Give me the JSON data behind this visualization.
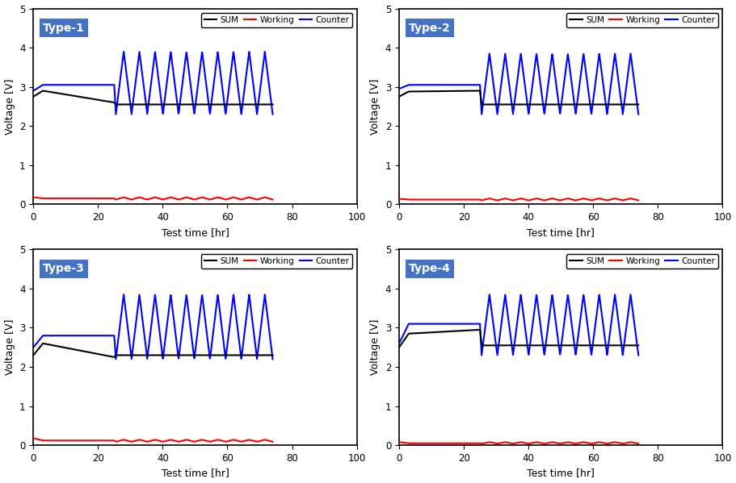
{
  "panels": [
    {
      "title": "Type-1",
      "sum_start": 2.75,
      "sum_peak": 2.9,
      "sum_precharge_end": 2.6,
      "sum_cycle": 2.55,
      "counter_start": 2.9,
      "counter_precharge_end": 3.05,
      "counter_cycle_hi": 3.9,
      "counter_cycle_lo": 2.3,
      "working_start": 0.18,
      "working_precharge": 0.15,
      "working_cycle_base": 0.12,
      "working_cycle_amp": 0.06,
      "precharge_end": 25.0,
      "cycle_start": 25.5,
      "cycle_end": 74.0,
      "n_cycles": 10
    },
    {
      "title": "Type-2",
      "sum_start": 2.75,
      "sum_peak": 2.88,
      "sum_precharge_end": 2.9,
      "sum_cycle": 2.55,
      "counter_start": 2.95,
      "counter_precharge_end": 3.05,
      "counter_cycle_hi": 3.85,
      "counter_cycle_lo": 2.3,
      "working_start": 0.14,
      "working_precharge": 0.12,
      "working_cycle_base": 0.1,
      "working_cycle_amp": 0.05,
      "precharge_end": 25.0,
      "cycle_start": 25.5,
      "cycle_end": 74.0,
      "n_cycles": 10
    },
    {
      "title": "Type-3",
      "sum_start": 2.3,
      "sum_peak": 2.6,
      "sum_precharge_end": 2.25,
      "sum_cycle": 2.3,
      "counter_start": 2.5,
      "counter_precharge_end": 2.8,
      "counter_cycle_hi": 3.85,
      "counter_cycle_lo": 2.2,
      "working_start": 0.18,
      "working_precharge": 0.12,
      "working_cycle_base": 0.09,
      "working_cycle_amp": 0.05,
      "precharge_end": 25.0,
      "cycle_start": 25.5,
      "cycle_end": 74.0,
      "n_cycles": 10
    },
    {
      "title": "Type-4",
      "sum_start": 2.5,
      "sum_peak": 2.85,
      "sum_precharge_end": 2.95,
      "sum_cycle": 2.55,
      "counter_start": 2.6,
      "counter_precharge_end": 3.1,
      "counter_cycle_hi": 3.85,
      "counter_cycle_lo": 2.3,
      "working_start": 0.08,
      "working_precharge": 0.05,
      "working_cycle_base": 0.04,
      "working_cycle_amp": 0.04,
      "precharge_end": 25.0,
      "cycle_start": 25.5,
      "cycle_end": 74.0,
      "n_cycles": 10
    }
  ],
  "colors": {
    "SUM": "#000000",
    "Working": "#ff0000",
    "Counter": "#0000ff"
  },
  "label_bg_color": "#4472c4",
  "xlabel": "Test time [hr]",
  "ylabel": "Voltage [V]",
  "xlim": [
    0,
    100
  ],
  "ylim": [
    0.0,
    5.0
  ],
  "xticks": [
    0,
    20,
    40,
    60,
    80,
    100
  ],
  "yticks": [
    0.0,
    1.0,
    2.0,
    3.0,
    4.0,
    5.0
  ],
  "linewidth": 1.5
}
